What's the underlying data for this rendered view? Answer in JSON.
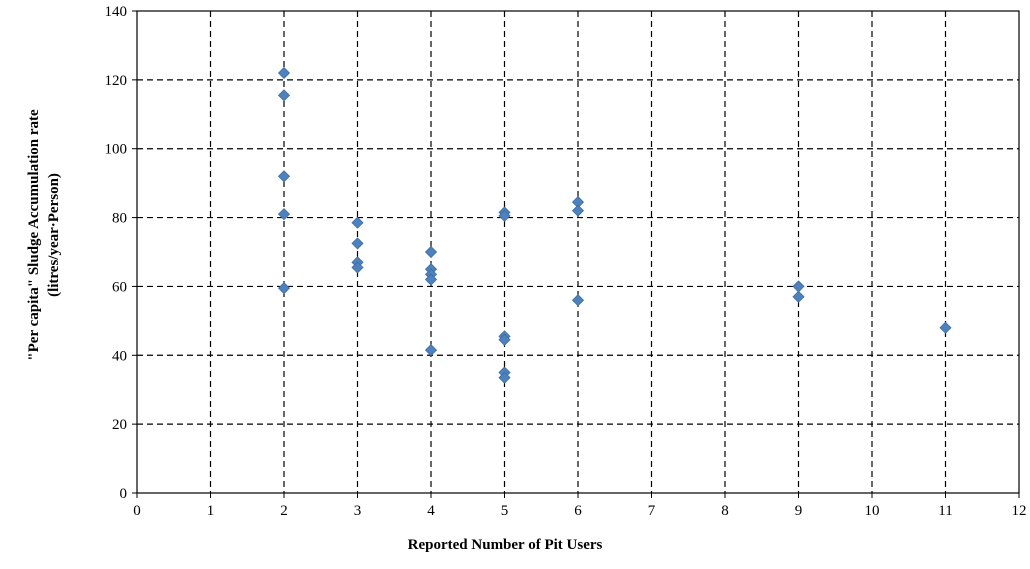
{
  "chart_data": {
    "type": "scatter",
    "title": "",
    "xlabel": "Reported Number of Pit Users",
    "ylabel_line1": "\"Per capita\" Sludge Accumulation rate",
    "ylabel_line2": "(litres/year·Person)",
    "xlim": [
      0,
      12
    ],
    "ylim": [
      0,
      140
    ],
    "x_ticks": [
      "0",
      "1",
      "2",
      "3",
      "4",
      "5",
      "6",
      "7",
      "8",
      "9",
      "10",
      "11",
      "12"
    ],
    "y_ticks": [
      "0",
      "20",
      "40",
      "60",
      "80",
      "100",
      "120",
      "140"
    ],
    "grid": true,
    "legend": "none",
    "marker": "diamond",
    "colors": {
      "marker": "#4F81BD",
      "marker_edge": "#3A6DA8",
      "grid": "#000000"
    },
    "series": [
      {
        "points": [
          {
            "x": 2,
            "y": 122
          },
          {
            "x": 2,
            "y": 115.5
          },
          {
            "x": 2,
            "y": 92
          },
          {
            "x": 2,
            "y": 81
          },
          {
            "x": 2,
            "y": 59.5
          },
          {
            "x": 3,
            "y": 78.5
          },
          {
            "x": 3,
            "y": 72.5
          },
          {
            "x": 3,
            "y": 67
          },
          {
            "x": 3,
            "y": 65.5
          },
          {
            "x": 4,
            "y": 70
          },
          {
            "x": 4,
            "y": 65
          },
          {
            "x": 4,
            "y": 63.5
          },
          {
            "x": 4,
            "y": 62
          },
          {
            "x": 4,
            "y": 41.5
          },
          {
            "x": 5,
            "y": 81.5
          },
          {
            "x": 5,
            "y": 80.5
          },
          {
            "x": 5,
            "y": 45.5
          },
          {
            "x": 5,
            "y": 44.5
          },
          {
            "x": 5,
            "y": 35
          },
          {
            "x": 5,
            "y": 33.5
          },
          {
            "x": 6,
            "y": 84.5
          },
          {
            "x": 6,
            "y": 82
          },
          {
            "x": 6,
            "y": 56
          },
          {
            "x": 9,
            "y": 60
          },
          {
            "x": 9,
            "y": 57
          },
          {
            "x": 11,
            "y": 48
          }
        ]
      }
    ]
  }
}
